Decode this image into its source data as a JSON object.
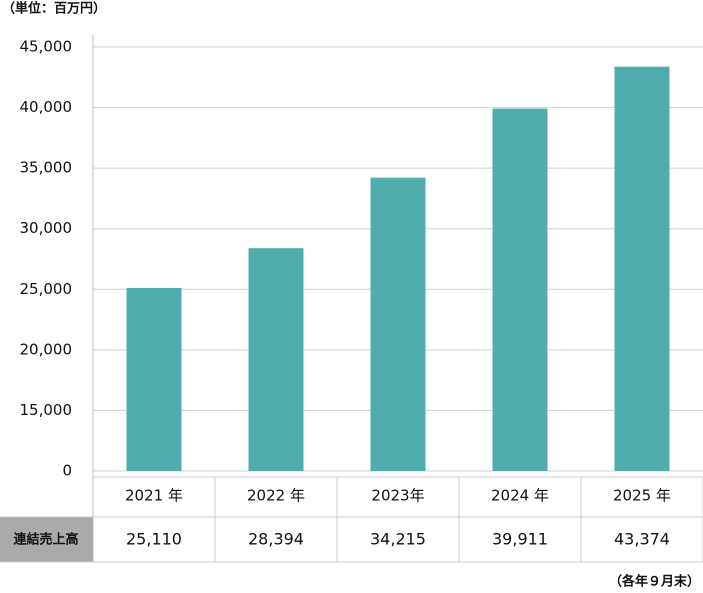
{
  "chart_data": {
    "type": "bar",
    "unit_note": "（単位：百万円）",
    "period_note": "（各年９月末）",
    "row_label": "連結売上高",
    "categories": [
      "2021 年",
      "2022 年",
      "2023年",
      "2024 年",
      "2025 年"
    ],
    "values": [
      25110,
      28394,
      34215,
      39911,
      43374
    ],
    "value_labels": [
      "25,110",
      "28,394",
      "34,215",
      "39,911",
      "43,374"
    ],
    "color": "#4fadad",
    "ylim": [
      0,
      45000
    ],
    "axis_break": [
      0,
      10000
    ],
    "yticks": [
      0,
      {
        "value": 15000,
        "label": "15,000"
      },
      {
        "value": 20000,
        "label": "20,000"
      },
      {
        "value": 25000,
        "label": "25,000"
      },
      {
        "value": 30000,
        "label": "30,000"
      },
      {
        "value": 35000,
        "label": "35,000"
      },
      {
        "value": 40000,
        "label": "40,000"
      },
      {
        "value": 45000,
        "label": "45,000"
      }
    ],
    "grid": true
  }
}
